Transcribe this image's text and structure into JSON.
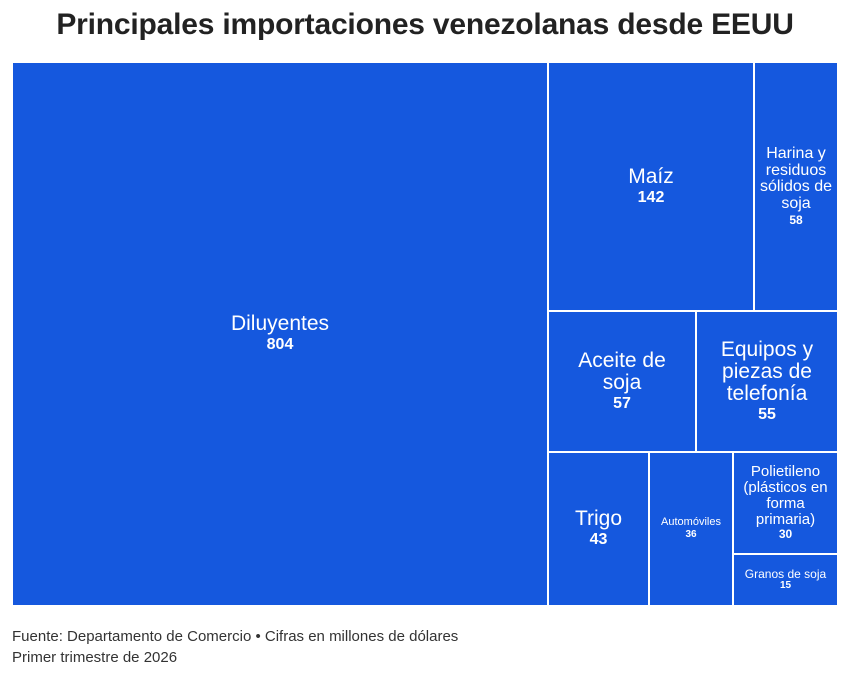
{
  "title": "Principales importaciones venezolanas desde EEUU",
  "footer": {
    "source": "Fuente: Departamento de Comercio • Cifras en millones de dólares",
    "period": "Primer trimestre de 2026"
  },
  "colors": {
    "cell": "#1558de",
    "border": "#ffffff",
    "text": "#ffffff"
  },
  "chart_data": {
    "type": "treemap",
    "unit": "millones de dólares",
    "items": [
      {
        "label": "Diluyentes",
        "value": 804
      },
      {
        "label": "Maíz",
        "value": 142
      },
      {
        "label": "Harina y residuos sólidos de soja",
        "value": 58
      },
      {
        "label": "Aceite de soja",
        "value": 57
      },
      {
        "label": "Equipos y piezas de telefonía",
        "value": 55
      },
      {
        "label": "Trigo",
        "value": 43
      },
      {
        "label": "Automóviles",
        "value": 36
      },
      {
        "label": "Polietileno (plásticos en forma primaria)",
        "value": 30
      },
      {
        "label": "Granos de soja",
        "value": 15
      }
    ]
  }
}
